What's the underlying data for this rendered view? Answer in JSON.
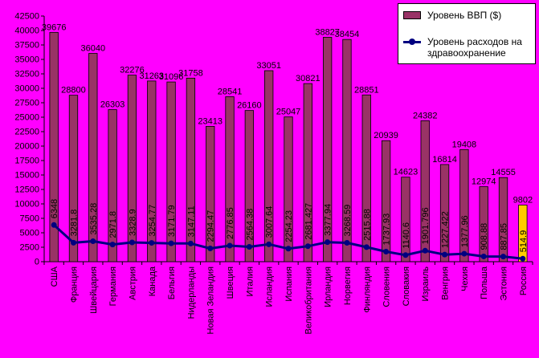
{
  "chart_data": {
    "type": "bar",
    "categories": [
      "США",
      "Франция",
      "Швейцария",
      "Германия",
      "Австрия",
      "Канада",
      "Бельгия",
      "Нидерланды",
      "Новая Зеландия",
      "Швеция",
      "Италия",
      "Исландия",
      "Испания",
      "Великобритания",
      "Ирландия",
      "Норвегия",
      "Финляндия",
      "Словения",
      "Словакия",
      "Израиль",
      "Венгрия",
      "Чехия",
      "Польша",
      "Эстония",
      "Россия"
    ],
    "series": [
      {
        "name": "Уровень ВВП ($)",
        "kind": "bar",
        "values": [
          39676,
          28800,
          36040,
          26303,
          32276,
          31263,
          31096,
          31758,
          23413,
          28541,
          26160,
          33051,
          25047,
          30821,
          38827,
          38454,
          28851,
          20939,
          14623,
          24382,
          16814,
          19408,
          12974,
          14555,
          9802
        ],
        "labels": [
          "39676",
          "28800",
          "36040",
          "26303",
          "32276",
          "31263",
          "31096",
          "31758",
          "23413",
          "28541",
          "26160",
          "33051",
          "25047",
          "30821",
          "38827",
          "38454",
          "28851",
          "20939",
          "14623",
          "24382",
          "16814",
          "19408",
          "12974",
          "14555",
          "9802"
        ]
      },
      {
        "name": "Уровень расходов на здравоохранение",
        "kind": "line",
        "values": [
          6348,
          3281.8,
          3535.28,
          2971.8,
          3328.9,
          3254.77,
          3171.79,
          3147.11,
          2294.47,
          2776.85,
          2564.38,
          3007.64,
          2254.23,
          2681.427,
          3377.94,
          3268.59,
          2515.88,
          1737.93,
          1140.6,
          1901.796,
          1227.422,
          1377.96,
          908.88,
          887.85,
          514.9
        ],
        "labels": [
          "6348",
          "3281.8",
          "3535.28",
          "2971.8",
          "3328.9",
          "3254.77",
          "3171.79",
          "3147.11",
          "2294.47",
          "2776.85",
          "2564.38",
          "3007.64",
          "2254.23",
          "2681.427",
          "3377.94",
          "3268.59",
          "2515.88",
          "1737.93",
          "1140.6",
          "1901.796",
          "1227.422",
          "1377.96",
          "908.88",
          "887.85",
          "514.9"
        ]
      }
    ],
    "yticks": [
      "0",
      "2500",
      "5000",
      "7500",
      "10000",
      "12500",
      "15000",
      "17500",
      "20000",
      "22500",
      "25000",
      "27500",
      "30000",
      "32500",
      "35000",
      "37500",
      "40000",
      "42500"
    ],
    "ylim": [
      0,
      42500
    ],
    "title": "",
    "xlabel": "",
    "ylabel": "",
    "legend_position": "top-right",
    "highlight_category": "Россия",
    "colors": {
      "background": "#ff00ff",
      "bar": "#993366",
      "bar_highlight": "#ffcc00",
      "line": "#000080",
      "text": "#000000"
    }
  },
  "legend": {
    "gdp_label": "Уровень ВВП ($)",
    "health_label_line1": "Уровень расходов на",
    "health_label_line2": "здравоохранение"
  }
}
